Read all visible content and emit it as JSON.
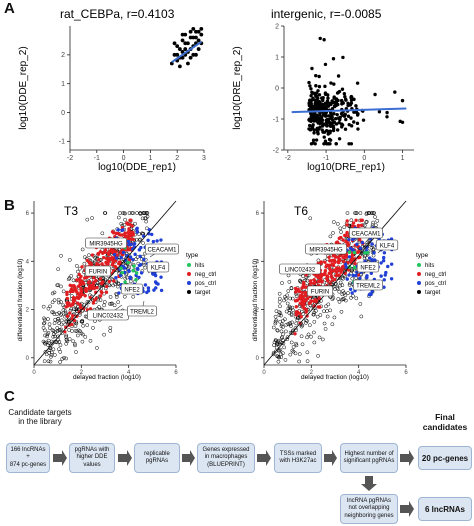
{
  "panels": {
    "a": "A",
    "b": "B",
    "c": "C"
  },
  "chart_data": [
    {
      "type": "scatter",
      "title": "rat_CEBPa, r=0.4103",
      "xlabel": "log10(DDE_rep1)",
      "ylabel": "log10(DDE_rep_2)",
      "xlim": [
        -2,
        3
      ],
      "ylim": [
        -1.3,
        3.0
      ],
      "xticks": [
        "-2",
        "-1",
        "0",
        "1",
        "2",
        "3"
      ],
      "yticks": [
        "-1",
        "0",
        "1",
        "2"
      ],
      "grid": false,
      "points": [
        [
          1.8,
          1.7
        ],
        [
          1.9,
          2.0
        ],
        [
          2.0,
          1.8
        ],
        [
          2.1,
          2.2
        ],
        [
          2.2,
          1.9
        ],
        [
          2.3,
          2.4
        ],
        [
          2.4,
          2.1
        ],
        [
          2.5,
          2.6
        ],
        [
          2.6,
          2.3
        ],
        [
          2.7,
          2.8
        ],
        [
          2.8,
          2.5
        ],
        [
          2.9,
          2.7
        ],
        [
          2.0,
          2.3
        ],
        [
          2.2,
          2.5
        ],
        [
          2.4,
          1.7
        ],
        [
          2.6,
          2.0
        ],
        [
          2.8,
          2.2
        ],
        [
          2.1,
          1.6
        ],
        [
          2.3,
          2.0
        ],
        [
          2.5,
          2.2
        ],
        [
          2.7,
          2.4
        ],
        [
          2.9,
          2.9
        ],
        [
          1.9,
          2.4
        ],
        [
          2.2,
          2.7
        ],
        [
          2.5,
          2.8
        ],
        [
          2.7,
          2.0
        ],
        [
          2.6,
          2.6
        ],
        [
          2.4,
          2.4
        ],
        [
          2.1,
          1.9
        ],
        [
          2.3,
          2.2
        ],
        [
          2.0,
          2.0
        ],
        [
          2.8,
          2.8
        ],
        [
          2.9,
          2.4
        ],
        [
          2.5,
          1.9
        ],
        [
          2.6,
          2.9
        ],
        [
          2.3,
          2.7
        ],
        [
          2.7,
          2.6
        ],
        [
          2.2,
          2.1
        ]
      ],
      "fit_line": [
        [
          1.8,
          1.75
        ],
        [
          2.9,
          2.45
        ]
      ]
    },
    {
      "type": "scatter",
      "title": "intergenic, r=-0.0085",
      "xlabel": "log10(DRE_rep1)",
      "ylabel": "log10(DRE_rep_2)",
      "xlim": [
        -2.1,
        1.3
      ],
      "ylim": [
        -2.0,
        2.0
      ],
      "xticks": [
        "-2",
        "-1",
        "0",
        "1"
      ],
      "yticks": [
        "-2",
        "-1",
        "0",
        "1",
        "2"
      ],
      "grid": false,
      "point_cloud": {
        "x_center": -1.2,
        "y_center": -0.8,
        "count": 340,
        "x_range": [
          -1.9,
          1.0
        ],
        "y_range": [
          -1.8,
          1.6
        ]
      },
      "fit_line": [
        [
          -1.9,
          -0.78
        ],
        [
          1.1,
          -0.66
        ]
      ]
    },
    {
      "type": "scatter",
      "title": "T3",
      "xlabel": "delayed fraction (log10)",
      "ylabel": "differentiated fraction (log10)",
      "xlim": [
        0,
        6
      ],
      "ylim": [
        -0.3,
        6.5
      ],
      "xticks": [
        "0",
        "2",
        "4",
        "6"
      ],
      "yticks": [
        "0",
        "2",
        "4",
        "6"
      ],
      "legend": {
        "title": "type",
        "entries": [
          {
            "name": "hits",
            "color": "#22c55e"
          },
          {
            "name": "neg_ctrl",
            "color": "#e11d21"
          },
          {
            "name": "pos_ctrl",
            "color": "#1f3fd6"
          },
          {
            "name": "target",
            "color": "#000000"
          }
        ],
        "placement": "right"
      },
      "annotations": [
        "MIR3945HG",
        "CEACAM1",
        "KLF4",
        "FURIN",
        "NFE2",
        "LINC02432",
        "TREML2"
      ],
      "diagonal": [
        [
          0,
          -0.4
        ],
        [
          6,
          6.5
        ]
      ]
    },
    {
      "type": "scatter",
      "title": "T6",
      "xlabel": "delayed fraction (log10)",
      "ylabel": "differentiated fraction (log10)",
      "xlim": [
        0,
        6
      ],
      "ylim": [
        -0.3,
        6.5
      ],
      "xticks": [
        "0",
        "2",
        "4",
        "6"
      ],
      "yticks": [
        "0",
        "2",
        "4",
        "6"
      ],
      "legend": {
        "title": "type",
        "entries": [
          {
            "name": "hits",
            "color": "#22c55e"
          },
          {
            "name": "neg_ctrl",
            "color": "#e11d21"
          },
          {
            "name": "pos_ctrl",
            "color": "#1f3fd6"
          },
          {
            "name": "target",
            "color": "#000000"
          }
        ],
        "placement": "right"
      },
      "annotations": [
        "CEACAM1",
        "MIR3945HG",
        "KLF4",
        "LINC02432",
        "NFE2",
        "FURIN",
        "TREML2"
      ],
      "diagonal": [
        [
          0,
          -0.4
        ],
        [
          6,
          6.5
        ]
      ]
    }
  ],
  "flow": {
    "intro": "Candidate targets\nin the library",
    "boxes": [
      "166 lncRNAs\n+\n874 pc-genes",
      "pgRNAs with\nhigher DDE\nvalues",
      "replicable\npgRNAs",
      "Genes expressed\nin macrophages\n(BLUEPRINT)",
      "TSSs marked\nwith H3K27ac",
      "Highest number of\nsignificant pgRNAs",
      "lncRNA pgRNAs\nnot overlapping\nneighboring genes"
    ],
    "final_header": "Final\ncandidates",
    "final_pc": "20 pc-genes",
    "final_lnc": "6 lncRNAs"
  },
  "colors": {
    "hits": "#22c55e",
    "neg_ctrl": "#e11d21",
    "pos_ctrl": "#1f3fd6",
    "target": "#000000",
    "fit": "#3b6fd4",
    "box": "#dce6f2",
    "arrow": "#555555"
  }
}
